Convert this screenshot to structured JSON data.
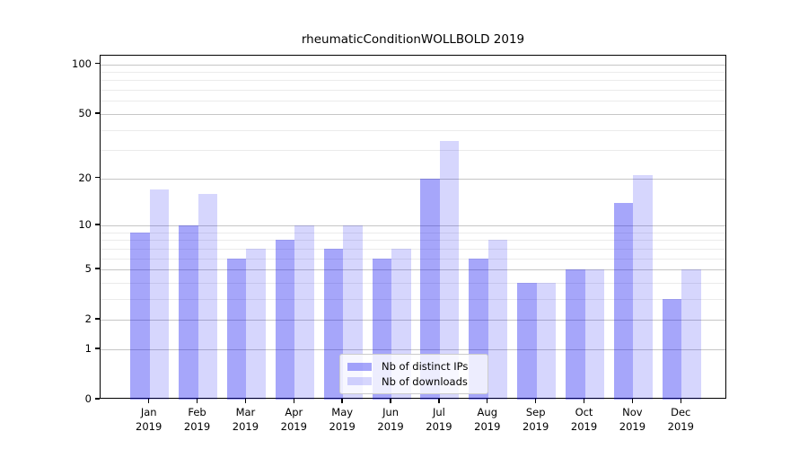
{
  "title": "rheumaticConditionWOLLBOLD 2019",
  "chart_data": {
    "type": "bar",
    "title": "rheumaticConditionWOLLBOLD 2019",
    "categories": [
      "Jan",
      "Feb",
      "Mar",
      "Apr",
      "May",
      "Jun",
      "Jul",
      "Aug",
      "Sep",
      "Oct",
      "Nov",
      "Dec"
    ],
    "category_year": "2019",
    "series": [
      {
        "name": "Nb of distinct IPs",
        "color": "#0000f0",
        "alpha": 0.35,
        "values": [
          9,
          10,
          6,
          8,
          7,
          6,
          20,
          6,
          4,
          5,
          14,
          3
        ]
      },
      {
        "name": "Nb of downloads",
        "color": "#0000f0",
        "alpha": 0.16,
        "values": [
          17,
          16,
          7,
          10,
          10,
          7,
          34,
          8,
          4,
          5,
          21,
          5
        ]
      }
    ],
    "yscale": "log1p",
    "ylim": [
      0,
      113
    ],
    "y_major_ticks": [
      100,
      50,
      20,
      10,
      5,
      2,
      1,
      0
    ],
    "y_minor_gridlines": [
      3,
      4,
      6,
      7,
      8,
      9,
      30,
      40,
      60,
      70,
      80,
      90
    ],
    "grid": "on",
    "legend_position": "lower-center",
    "xlabel": "",
    "ylabel": ""
  }
}
